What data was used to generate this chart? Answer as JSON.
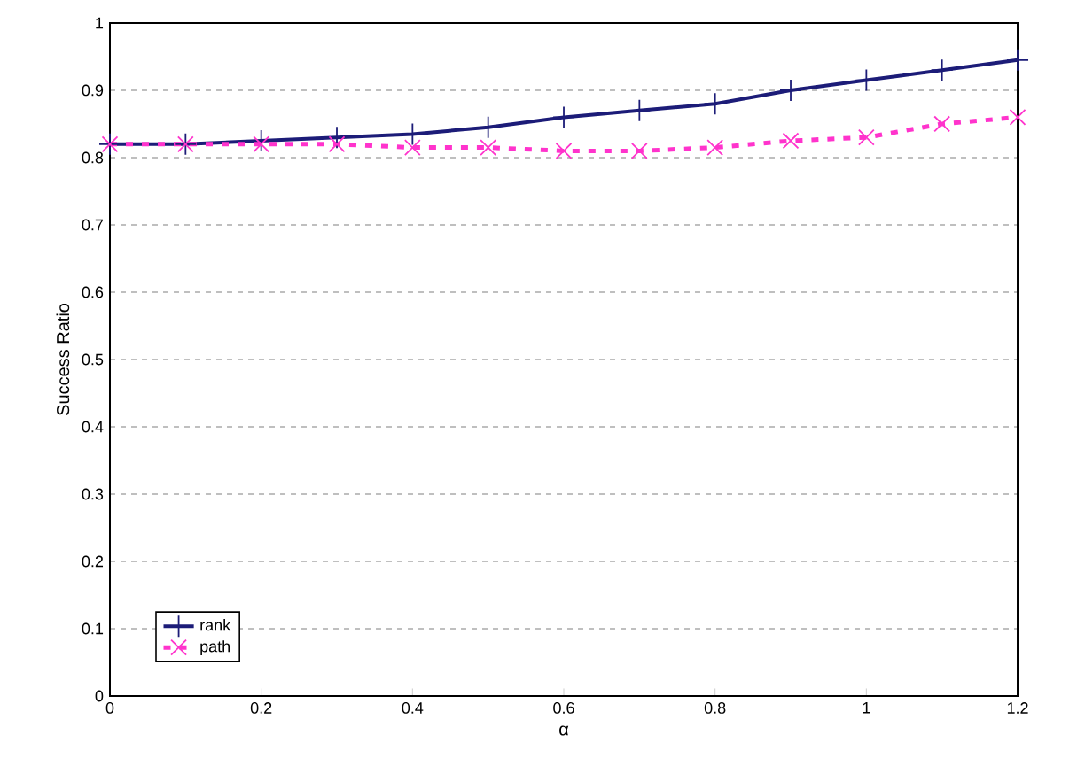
{
  "chart_data": {
    "type": "line",
    "xlabel": "α",
    "ylabel": "Success Ratio",
    "x": [
      0,
      0.1,
      0.2,
      0.3,
      0.4,
      0.5,
      0.6,
      0.7,
      0.8,
      0.9,
      1.0,
      1.1,
      1.2
    ],
    "series": [
      {
        "name": "rank",
        "color": "#1c1c78",
        "marker": "cross",
        "line_style": "solid",
        "values": [
          0.82,
          0.82,
          0.825,
          0.83,
          0.835,
          0.845,
          0.86,
          0.87,
          0.88,
          0.9,
          0.915,
          0.93,
          0.945
        ]
      },
      {
        "name": "path",
        "color": "#ff33cc",
        "marker": "cross",
        "line_style": "dashed",
        "values": [
          0.82,
          0.82,
          0.82,
          0.82,
          0.815,
          0.815,
          0.81,
          0.81,
          0.815,
          0.825,
          0.83,
          0.85,
          0.86
        ]
      }
    ],
    "xlim": [
      0,
      1.2
    ],
    "xticks": [
      0,
      0.2,
      0.4,
      0.6,
      0.8,
      1,
      1.2
    ],
    "ylim": [
      0,
      1
    ],
    "yticks": [
      0,
      0.1,
      0.2,
      0.3,
      0.4,
      0.5,
      0.6,
      0.7,
      0.8,
      0.9,
      1
    ],
    "grid": "y",
    "legend": "bottom left"
  }
}
